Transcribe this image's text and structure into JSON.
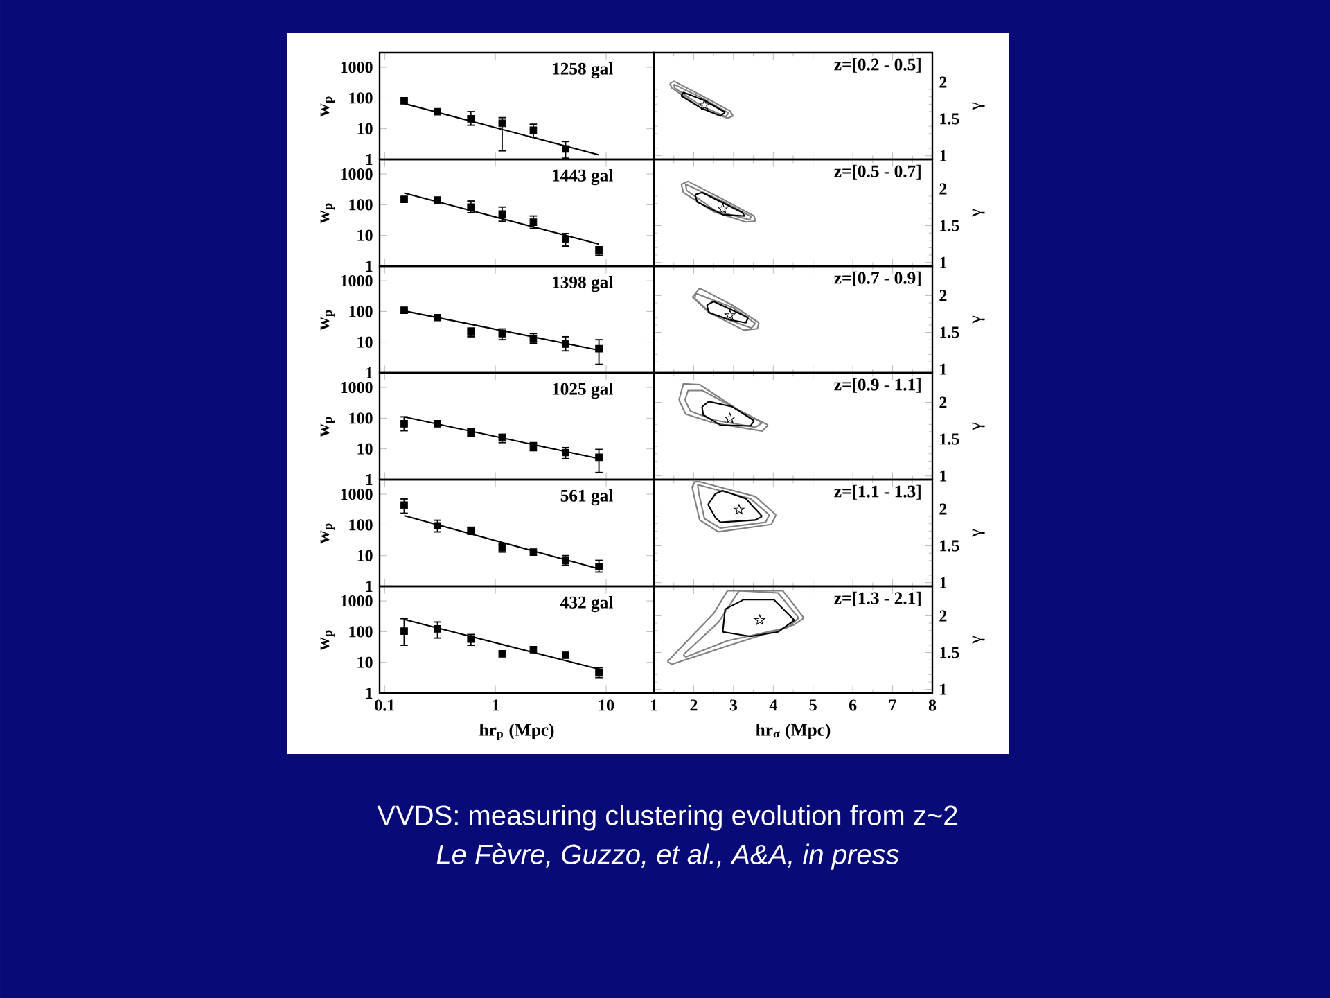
{
  "chart_data": [
    {
      "type": "scatter",
      "ylabel": "w$_{p}$",
      "log": "xy",
      "xlim": [
        0.09,
        27
      ],
      "ylim": [
        1,
        3000
      ],
      "xticks": [
        0.1,
        1,
        10
      ],
      "yticks": [
        1,
        10,
        100,
        1000
      ],
      "tick_labels": "y",
      "annotations": [
        "1258 gal"
      ],
      "series": [
        {
          "marker": "square",
          "color": "#000000",
          "x": [
            0.15,
            0.3,
            0.6,
            1.15,
            2.2,
            4.3
          ],
          "values": [
            81,
            36,
            21,
            15,
            9,
            2.2
          ],
          "errors": [
            null,
            null,
            [
              13,
              36
            ],
            [
              1.9,
              23
            ],
            [
              5.3,
              14
            ],
            [
              1.1,
              3.8
            ]
          ]
        },
        {
          "type": "line",
          "color": "#000000",
          "x": [
            0.15,
            8.6
          ],
          "values": [
            66,
            1.4
          ]
        }
      ]
    },
    {
      "type": "line",
      "ylabel": "γ",
      "xlim": [
        1,
        8
      ],
      "ylim": [
        0.95,
        2.4
      ],
      "xticks": [
        1,
        2,
        3,
        4,
        5,
        6,
        7,
        8
      ],
      "yticks": [
        1,
        1.5,
        2
      ],
      "tick_labels": "y",
      "annotations": [
        "z=[0.2 - 0.5]"
      ],
      "series": [
        {
          "color": "#808080",
          "x": [
            1.4,
            1.51,
            2.15,
            2.91,
            2.99
          ],
          "values": [
            1.98,
            2.01,
            1.83,
            1.61,
            1.54
          ]
        },
        {
          "color": "#808080",
          "x": [
            1.4,
            1.45,
            2.15,
            2.85,
            2.99
          ],
          "values": [
            1.98,
            1.92,
            1.66,
            1.51,
            1.54
          ]
        },
        {
          "color": "#808080",
          "x": [
            1.5,
            2.15,
            2.88
          ],
          "values": [
            1.97,
            1.8,
            1.58
          ]
        },
        {
          "color": "#808080",
          "x": [
            1.5,
            1.52,
            2.15,
            2.8,
            2.88
          ],
          "values": [
            1.97,
            1.92,
            1.69,
            1.53,
            1.58
          ]
        },
        {
          "color": "#000000",
          "x": [
            1.69,
            1.74,
            2.27,
            2.79
          ],
          "values": [
            1.81,
            1.86,
            1.75,
            1.59
          ]
        },
        {
          "color": "#000000",
          "x": [
            1.69,
            2.21,
            2.67,
            2.79
          ],
          "values": [
            1.81,
            1.64,
            1.54,
            1.59
          ]
        },
        {
          "type": "scatter",
          "marker": "star",
          "color": "#000000",
          "x": [
            2.27
          ],
          "values": [
            1.69
          ]
        }
      ]
    },
    {
      "type": "scatter",
      "ylabel": "w$_{p}$",
      "log": "xy",
      "xlim": [
        0.09,
        27
      ],
      "ylim": [
        1,
        3000
      ],
      "xticks": [
        0.1,
        1,
        10
      ],
      "yticks": [
        1,
        10,
        100,
        1000
      ],
      "tick_labels": "y",
      "annotations": [
        "1443 gal"
      ],
      "series": [
        {
          "marker": "square",
          "color": "#000000",
          "x": [
            0.15,
            0.3,
            0.6,
            1.15,
            2.2,
            4.3,
            8.6
          ],
          "values": [
            150,
            142,
            84,
            50,
            27,
            7.6,
            3.1
          ],
          "errors": [
            null,
            null,
            [
              55,
              132
            ],
            [
              29,
              84
            ],
            [
              17,
              43
            ],
            [
              4.5,
              11.5
            ],
            [
              2.2,
              4.3
            ]
          ]
        },
        {
          "type": "line",
          "color": "#000000",
          "x": [
            0.15,
            8.6
          ],
          "values": [
            240,
            5.2
          ]
        }
      ]
    },
    {
      "type": "line",
      "ylabel": "γ",
      "xlim": [
        1,
        8
      ],
      "ylim": [
        0.95,
        2.4
      ],
      "xticks": [
        1,
        2,
        3,
        4,
        5,
        6,
        7,
        8
      ],
      "yticks": [
        1,
        1.5,
        2
      ],
      "tick_labels": "y",
      "annotations": [
        "z=[0.5 - 0.7]"
      ],
      "series": [
        {
          "color": "#808080",
          "x": [
            1.69,
            1.86,
            2.73,
            3.52,
            3.55
          ],
          "values": [
            2.06,
            2.1,
            1.86,
            1.63,
            1.56
          ]
        },
        {
          "color": "#808080",
          "x": [
            1.69,
            1.74,
            2.5,
            3.31,
            3.55
          ],
          "values": [
            2.06,
            1.95,
            1.69,
            1.55,
            1.56
          ]
        },
        {
          "color": "#808080",
          "x": [
            1.8,
            2.73,
            3.45
          ],
          "values": [
            2.06,
            1.83,
            1.62
          ]
        },
        {
          "color": "#808080",
          "x": [
            1.8,
            1.82,
            2.55,
            3.4,
            3.45
          ],
          "values": [
            2.06,
            1.98,
            1.7,
            1.58,
            1.62
          ]
        },
        {
          "color": "#000000",
          "x": [
            2.03,
            2.21,
            3.22,
            3.28
          ],
          "values": [
            1.92,
            1.95,
            1.68,
            1.63
          ]
        },
        {
          "color": "#000000",
          "x": [
            2.03,
            2.09,
            2.73,
            3.28
          ],
          "values": [
            1.92,
            1.82,
            1.65,
            1.63
          ]
        },
        {
          "type": "scatter",
          "marker": "star",
          "color": "#000000",
          "x": [
            2.73
          ],
          "values": [
            1.73
          ]
        }
      ]
    },
    {
      "type": "scatter",
      "ylabel": "w$_{p}$",
      "log": "xy",
      "xlim": [
        0.09,
        27
      ],
      "ylim": [
        1,
        3000
      ],
      "xticks": [
        0.1,
        1,
        10
      ],
      "yticks": [
        1,
        10,
        100,
        1000
      ],
      "tick_labels": "y",
      "annotations": [
        "1398 gal"
      ],
      "series": [
        {
          "marker": "square",
          "color": "#000000",
          "x": [
            0.15,
            0.3,
            0.6,
            1.15,
            2.2,
            4.3,
            8.6
          ],
          "values": [
            110,
            63,
            21,
            19,
            13,
            8.7,
            6.1
          ],
          "errors": [
            null,
            null,
            [
              15,
              29
            ],
            [
              12,
              27
            ],
            [
              9.3,
              19
            ],
            [
              5.2,
              15
            ],
            [
              1.9,
              12
            ]
          ]
        },
        {
          "type": "line",
          "color": "#000000",
          "x": [
            0.15,
            8.6
          ],
          "values": [
            104,
            5.5
          ]
        }
      ]
    },
    {
      "type": "line",
      "ylabel": "γ",
      "xlim": [
        1,
        8
      ],
      "ylim": [
        0.95,
        2.4
      ],
      "xticks": [
        1,
        2,
        3,
        4,
        5,
        6,
        7,
        8
      ],
      "yticks": [
        1,
        1.5,
        2
      ],
      "tick_labels": "y",
      "annotations": [
        "z=[0.7 - 0.9]"
      ],
      "series": [
        {
          "color": "#808080",
          "x": [
            1.97,
            2.15,
            2.97,
            3.64
          ],
          "values": [
            1.98,
            2.1,
            1.87,
            1.63
          ]
        },
        {
          "color": "#808080",
          "x": [
            1.97,
            2.38,
            3.26,
            3.6,
            3.64
          ],
          "values": [
            1.98,
            1.77,
            1.53,
            1.55,
            1.63
          ]
        },
        {
          "color": "#808080",
          "x": [
            2.03,
            2.05,
            2.97,
            3.55
          ],
          "values": [
            1.96,
            2.03,
            1.84,
            1.62
          ]
        },
        {
          "color": "#808080",
          "x": [
            2.03,
            2.45,
            3.45,
            3.55
          ],
          "values": [
            1.96,
            1.75,
            1.56,
            1.62
          ]
        },
        {
          "color": "#000000",
          "x": [
            2.33,
            2.5,
            3.37
          ],
          "values": [
            1.87,
            1.92,
            1.7
          ]
        },
        {
          "color": "#000000",
          "x": [
            2.33,
            2.38,
            2.91,
            3.31,
            3.37
          ],
          "values": [
            1.87,
            1.77,
            1.67,
            1.63,
            1.7
          ]
        },
        {
          "type": "scatter",
          "marker": "star",
          "color": "#000000",
          "x": [
            2.91
          ],
          "values": [
            1.73
          ]
        }
      ]
    },
    {
      "type": "scatter",
      "ylabel": "w$_{p}$",
      "log": "xy",
      "xlim": [
        0.09,
        27
      ],
      "ylim": [
        1,
        3000
      ],
      "xticks": [
        0.1,
        1,
        10
      ],
      "yticks": [
        1,
        10,
        100,
        1000
      ],
      "tick_labels": "y",
      "annotations": [
        "1025 gal"
      ],
      "series": [
        {
          "marker": "square",
          "color": "#000000",
          "x": [
            0.15,
            0.3,
            0.6,
            1.15,
            2.2,
            4.3,
            8.6
          ],
          "values": [
            66,
            66,
            35,
            23,
            12,
            7.6,
            5.3
          ],
          "errors": [
            [
              39,
              111
            ],
            null,
            [
              26,
              46
            ],
            [
              16,
              30
            ],
            [
              8.7,
              16
            ],
            [
              4.8,
              11
            ],
            [
              1.7,
              9.6
            ]
          ]
        },
        {
          "type": "line",
          "color": "#000000",
          "x": [
            0.15,
            8.6
          ],
          "values": [
            110,
            4.8
          ]
        }
      ]
    },
    {
      "type": "line",
      "ylabel": "γ",
      "xlim": [
        1,
        8
      ],
      "ylim": [
        0.95,
        2.4
      ],
      "xticks": [
        1,
        2,
        3,
        4,
        5,
        6,
        7,
        8
      ],
      "yticks": [
        1,
        1.5,
        2
      ],
      "tick_labels": "y",
      "annotations": [
        "z=[0.9 - 1.1]"
      ],
      "series": [
        {
          "color": "#808080",
          "x": [
            1.63,
            1.74,
            2.15,
            3.08,
            3.87
          ],
          "values": [
            2.03,
            2.25,
            2.24,
            1.91,
            1.69
          ]
        },
        {
          "color": "#808080",
          "x": [
            1.63,
            1.8,
            2.5,
            3.72,
            3.87
          ],
          "values": [
            2.03,
            1.84,
            1.72,
            1.61,
            1.69
          ]
        },
        {
          "color": "#808080",
          "x": [
            1.78,
            1.86,
            2.22,
            3.72
          ],
          "values": [
            2.03,
            2.16,
            2.16,
            1.72
          ]
        },
        {
          "color": "#808080",
          "x": [
            1.78,
            1.92,
            2.5,
            3.55,
            3.72
          ],
          "values": [
            2.03,
            1.88,
            1.76,
            1.66,
            1.72
          ]
        },
        {
          "color": "#000000",
          "x": [
            2.21,
            2.38,
            2.97,
            3.52
          ],
          "values": [
            1.94,
            2.01,
            1.94,
            1.75
          ]
        },
        {
          "color": "#000000",
          "x": [
            2.21,
            2.24,
            2.67,
            3.43,
            3.52
          ],
          "values": [
            1.94,
            1.83,
            1.69,
            1.68,
            1.75
          ]
        },
        {
          "type": "scatter",
          "marker": "star",
          "color": "#000000",
          "x": [
            2.91
          ],
          "values": [
            1.78
          ]
        }
      ]
    },
    {
      "type": "scatter",
      "ylabel": "w$_{p}$",
      "log": "xy",
      "xlim": [
        0.09,
        27
      ],
      "ylim": [
        1,
        3000
      ],
      "xticks": [
        0.1,
        1,
        10
      ],
      "yticks": [
        1,
        10,
        100,
        1000
      ],
      "tick_labels": "y",
      "annotations": [
        "561 gal"
      ],
      "series": [
        {
          "marker": "square",
          "color": "#000000",
          "x": [
            0.15,
            0.3,
            0.6,
            1.15,
            2.2,
            4.3,
            8.6
          ],
          "values": [
            440,
            93,
            65,
            18,
            13,
            7,
            4.4
          ],
          "errors": [
            [
              240,
              700
            ],
            [
              59,
              142
            ],
            [
              49,
              84
            ],
            [
              13,
              24
            ],
            null,
            [
              4.9,
              10
            ],
            [
              2.9,
              7
            ]
          ]
        },
        {
          "type": "line",
          "color": "#000000",
          "x": [
            0.15,
            8.6
          ],
          "values": [
            200,
            3.7
          ]
        }
      ]
    },
    {
      "type": "line",
      "ylabel": "γ",
      "xlim": [
        1,
        8
      ],
      "ylim": [
        0.95,
        2.4
      ],
      "xticks": [
        1,
        2,
        3,
        4,
        5,
        6,
        7,
        8
      ],
      "yticks": [
        1,
        1.5,
        2
      ],
      "tick_labels": "y",
      "annotations": [
        "z=[1.1 - 1.3]"
      ],
      "series": [
        {
          "color": "#808080",
          "x": [
            1.96,
            2.03,
            2.15,
            3.55,
            4.07
          ],
          "values": [
            2.3,
            2.37,
            2.37,
            2.17,
            1.92
          ]
        },
        {
          "color": "#808080",
          "x": [
            1.96,
            2.0,
            2.15,
            2.62,
            3.95,
            4.07
          ],
          "values": [
            2.3,
            2.2,
            1.85,
            1.69,
            1.79,
            1.92
          ]
        },
        {
          "color": "#808080",
          "x": [
            2.1,
            3.43,
            3.9
          ],
          "values": [
            2.33,
            2.14,
            1.92
          ]
        },
        {
          "color": "#808080",
          "x": [
            2.1,
            2.13,
            2.27,
            2.67,
            3.81,
            3.9
          ],
          "values": [
            2.33,
            2.21,
            1.87,
            1.74,
            1.82,
            1.92
          ]
        },
        {
          "color": "#000000",
          "x": [
            2.36,
            2.55,
            2.73,
            3.31,
            3.72
          ],
          "values": [
            2.06,
            2.21,
            2.25,
            2.14,
            1.9
          ]
        },
        {
          "color": "#000000",
          "x": [
            2.36,
            2.55,
            2.67,
            3.55,
            3.72
          ],
          "values": [
            2.06,
            1.88,
            1.82,
            1.85,
            1.9
          ]
        },
        {
          "type": "scatter",
          "marker": "star",
          "color": "#000000",
          "x": [
            3.14
          ],
          "values": [
            1.99
          ]
        }
      ]
    },
    {
      "type": "scatter",
      "xlabel": "hr$_{p}$ (Mpc)",
      "ylabel": "w$_{p}$",
      "log": "xy",
      "xlim": [
        0.09,
        27
      ],
      "ylim": [
        1,
        3000
      ],
      "xticks": [
        0.1,
        1,
        10
      ],
      "yticks": [
        1,
        10,
        100,
        1000
      ],
      "annotations": [
        "432 gal"
      ],
      "series": [
        {
          "marker": "square",
          "color": "#000000",
          "x": [
            0.15,
            0.3,
            0.6,
            1.15,
            2.2,
            4.3,
            8.6
          ],
          "values": [
            104,
            123,
            57,
            19,
            26,
            17,
            4.8
          ],
          "errors": [
            [
              36,
              265
            ],
            [
              62,
              207
            ],
            [
              36,
              81
            ],
            null,
            null,
            null,
            [
              3.2,
              6.8
            ]
          ]
        },
        {
          "type": "line",
          "color": "#000000",
          "x": [
            0.15,
            8.6
          ],
          "values": [
            250,
            6
          ]
        }
      ]
    },
    {
      "type": "line",
      "xlabel": "hr$_{σ}$ (Mpc)",
      "ylabel": "γ",
      "xlim": [
        1,
        8
      ],
      "ylim": [
        0.95,
        2.4
      ],
      "xticks": [
        1,
        2,
        3,
        4,
        5,
        6,
        7,
        8
      ],
      "yticks": [
        1,
        1.5,
        2
      ],
      "annotations": [
        "z=[1.3 - 2.1]"
      ],
      "series": [
        {
          "color": "#808080",
          "x": [
            1.34,
            1.45,
            2.5,
            2.85,
            4.24,
            4.77
          ],
          "values": [
            1.38,
            1.44,
            2.03,
            2.34,
            2.34,
            1.97
          ]
        },
        {
          "color": "#808080",
          "x": [
            1.34,
            1.45,
            2.85,
            4.53,
            4.77
          ],
          "values": [
            1.38,
            1.34,
            1.59,
            1.88,
            1.97
          ]
        },
        {
          "color": "#808080",
          "x": [
            1.74,
            2.62,
            3.14,
            4.12,
            4.64
          ],
          "values": [
            1.47,
            1.91,
            2.34,
            2.31,
            1.97
          ]
        },
        {
          "color": "#808080",
          "x": [
            1.74,
            1.8,
            2.85,
            4.36,
            4.64
          ],
          "values": [
            1.47,
            1.44,
            1.66,
            1.84,
            1.97
          ]
        },
        {
          "color": "#000000",
          "x": [
            2.73,
            2.79,
            3.26,
            4.01,
            4.53
          ],
          "values": [
            1.78,
            2.09,
            2.22,
            2.22,
            1.94
          ]
        },
        {
          "color": "#000000",
          "x": [
            2.73,
            3.43,
            4.12,
            4.53
          ],
          "values": [
            1.78,
            1.72,
            1.78,
            1.94
          ]
        },
        {
          "type": "scatter",
          "marker": "star",
          "color": "#000000",
          "x": [
            3.66
          ],
          "values": [
            1.94
          ]
        }
      ]
    },
    {
      "type": "other",
      "title": "VVDS: measuring clustering evolution from z~2",
      "subtitle": "*Le Fèvre, Guzzo, et al., A&A, in press*"
    }
  ]
}
